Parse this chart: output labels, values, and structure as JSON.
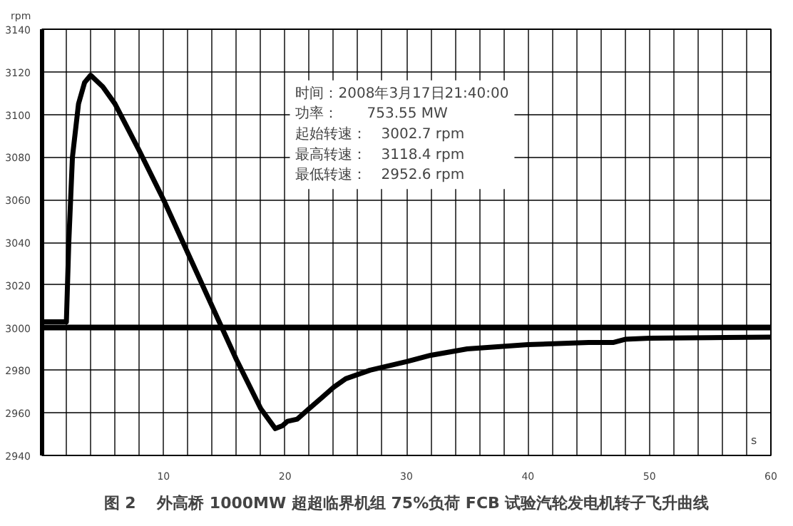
{
  "chart_data": {
    "type": "line",
    "title": "图 2　 外高桥 1000MW 超超临界机组 75%负荷 FCB 试验汽轮发电机转子飞升曲线",
    "xlabel": "s",
    "ylabel": "rpm",
    "x": [
      0,
      2,
      2.2,
      2.5,
      3,
      3.5,
      4,
      5,
      6,
      8,
      10,
      12,
      14,
      16,
      18,
      19.2,
      19.8,
      20.2,
      21,
      22,
      23,
      24,
      25,
      27,
      30,
      32,
      35,
      40,
      45,
      47,
      48,
      50,
      55,
      60
    ],
    "series": [
      {
        "color": "#000000",
        "values": [
          3002.7,
          3002.7,
          3040,
          3080,
          3105,
          3115,
          3118.4,
          3113,
          3105,
          3083,
          3060,
          3035,
          3010,
          2985,
          2962,
          2952.6,
          2954,
          2956,
          2957,
          2962,
          2967,
          2972,
          2976,
          2980,
          2984,
          2987,
          2990,
          2992,
          2993,
          2993,
          2994.5,
          2995,
          2995.3,
          2995.5
        ]
      }
    ],
    "xlim": [
      0,
      60
    ],
    "ylim": [
      2940,
      3140
    ],
    "xticks": [
      {
        "value": 2,
        "label": null
      },
      {
        "value": 4,
        "label": null
      },
      {
        "value": 6,
        "label": null
      },
      {
        "value": 8,
        "label": null
      },
      10,
      {
        "value": 12,
        "label": null
      },
      {
        "value": 14,
        "label": null
      },
      {
        "value": 16,
        "label": null
      },
      {
        "value": 18,
        "label": null
      },
      20,
      {
        "value": 22,
        "label": null
      },
      {
        "value": 24,
        "label": null
      },
      {
        "value": 26,
        "label": null
      },
      {
        "value": 28,
        "label": null
      },
      30,
      {
        "value": 32,
        "label": null
      },
      {
        "value": 34,
        "label": null
      },
      {
        "value": 36,
        "label": null
      },
      {
        "value": 38,
        "label": null
      },
      40,
      {
        "value": 42,
        "label": null
      },
      {
        "value": 44,
        "label": null
      },
      {
        "value": 46,
        "label": null
      },
      {
        "value": 48,
        "label": null
      },
      50,
      {
        "value": 52,
        "label": null
      },
      {
        "value": 54,
        "label": null
      },
      {
        "value": 56,
        "label": null
      },
      {
        "value": 58,
        "label": null
      },
      60
    ],
    "yticks": [
      2940,
      2960,
      2980,
      3000,
      3020,
      3040,
      3060,
      3080,
      3100,
      3120,
      3140
    ],
    "grid": true,
    "line_style": "solid",
    "marker": "none",
    "ref_lines": [
      {
        "axis": "y",
        "value": 3000,
        "label": null,
        "color": "#000000"
      }
    ],
    "annotations": [
      "时间：2008年3月17日21:40:00",
      "功率：　　753.55 MW",
      "起始转速：　3002.7 rpm",
      "最高转速：　3118.4 rpm",
      "最低转速：　2952.6 rpm"
    ]
  }
}
